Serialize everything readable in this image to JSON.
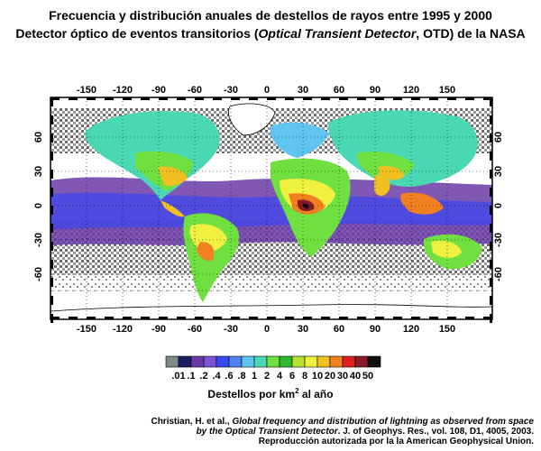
{
  "title": {
    "line1": "Frecuencia y distribución anuales de destellos de rayos entre 1995 y 2000",
    "line2_pre": "Detector óptico de eventos transitorios (",
    "line2_italic": "Optical Transient Detector",
    "line2_post": ", OTD) de la NASA"
  },
  "axes": {
    "longitude_ticks": [
      "-150",
      "-120",
      "-90",
      "-60",
      "-30",
      "0",
      "30",
      "60",
      "90",
      "120",
      "150"
    ],
    "latitude_ticks": [
      "60",
      "30",
      "0",
      "-30",
      "-60"
    ]
  },
  "legend": {
    "labels": [
      ".01",
      ".1",
      ".2",
      ".4",
      ".6",
      ".8",
      "1",
      "2",
      "4",
      "6",
      "8",
      "10",
      "20",
      "30",
      "40",
      "50"
    ],
    "colors": [
      "#7f8a8a",
      "#182060",
      "#6a3aa8",
      "#7a55d8",
      "#3a46f0",
      "#4e82f0",
      "#60c4f0",
      "#4ad8b4",
      "#70e040",
      "#30b830",
      "#b4e030",
      "#f0f040",
      "#f0c020",
      "#f08020",
      "#e02020",
      "#8a1a28",
      "#101010"
    ],
    "caption_pre": "Destellos por km",
    "caption_sup": "2",
    "caption_post": " al año"
  },
  "credit": {
    "line1_pre": "Christian, H. et al., ",
    "line1_italic": "Global frequency and distribution of lightning as observed from space",
    "line2_italic": "by the Optical Transient Detector",
    "line2_post": ". J. of Geophys. Res., vol. 108, D1, 4005, 2003.",
    "line3": "Reproducción autorizada por la la American Geophysical Union."
  },
  "colors": {
    "ocean_gray": "#8a8a8a",
    "frame": "#000000"
  }
}
